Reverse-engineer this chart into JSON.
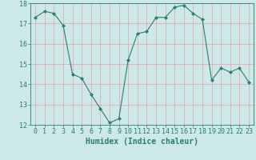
{
  "x": [
    0,
    1,
    2,
    3,
    4,
    5,
    6,
    7,
    8,
    9,
    10,
    11,
    12,
    13,
    14,
    15,
    16,
    17,
    18,
    19,
    20,
    21,
    22,
    23
  ],
  "y": [
    17.3,
    17.6,
    17.5,
    16.9,
    14.5,
    14.3,
    13.5,
    12.8,
    12.1,
    12.3,
    15.2,
    16.5,
    16.6,
    17.3,
    17.3,
    17.8,
    17.9,
    17.5,
    17.2,
    14.2,
    14.8,
    14.6,
    14.8,
    14.1
  ],
  "line_color": "#2e7d6e",
  "marker": "D",
  "marker_size": 2,
  "bg_color": "#cce8e8",
  "grid_color": "#e8a0a0",
  "xlabel": "Humidex (Indice chaleur)",
  "ylim": [
    12,
    18
  ],
  "xlim": [
    -0.5,
    23.5
  ],
  "yticks": [
    12,
    13,
    14,
    15,
    16,
    17,
    18
  ],
  "xticks": [
    0,
    1,
    2,
    3,
    4,
    5,
    6,
    7,
    8,
    9,
    10,
    11,
    12,
    13,
    14,
    15,
    16,
    17,
    18,
    19,
    20,
    21,
    22,
    23
  ],
  "xlabel_fontsize": 7,
  "tick_fontsize": 6
}
